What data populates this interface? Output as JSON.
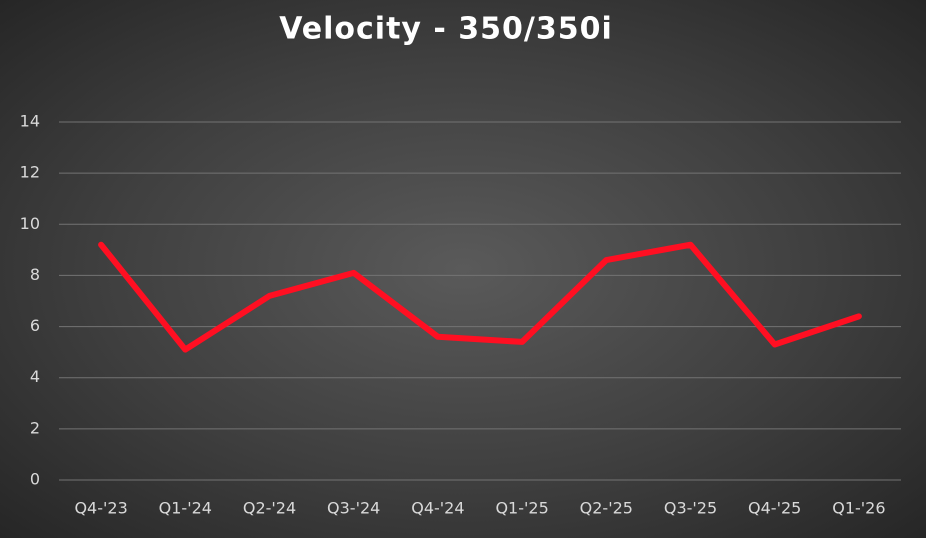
{
  "chart_data": {
    "type": "line",
    "title": "Velocity - 350/350i",
    "categories": [
      "Q4-'23",
      "Q1-'24",
      "Q2-'24",
      "Q3-'24",
      "Q4-'24",
      "Q1-'25",
      "Q2-'25",
      "Q3-'25",
      "Q4-'25",
      "Q1-'26"
    ],
    "values": [
      9.2,
      5.1,
      7.2,
      8.1,
      5.6,
      5.4,
      8.6,
      9.2,
      5.3,
      6.4
    ],
    "color": "#ff0f22",
    "ylim": [
      0,
      14
    ],
    "yticks": [
      0,
      2,
      4,
      6,
      8,
      10,
      12,
      14
    ],
    "grid": true
  }
}
